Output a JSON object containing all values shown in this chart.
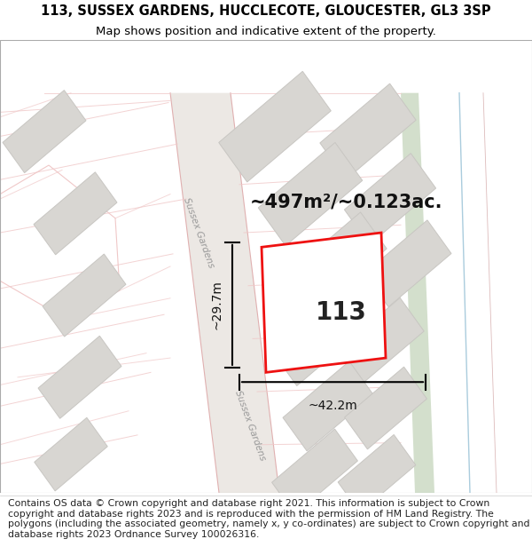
{
  "title_line1": "113, SUSSEX GARDENS, HUCCLECOTE, GLOUCESTER, GL3 3SP",
  "title_line2": "Map shows position and indicative extent of the property.",
  "footer_text": "Contains OS data © Crown copyright and database right 2021. This information is subject to Crown copyright and database rights 2023 and is reproduced with the permission of HM Land Registry. The polygons (including the associated geometry, namely x, y co-ordinates) are subject to Crown copyright and database rights 2023 Ordnance Survey 100026316.",
  "bg_color": "#ffffff",
  "map_bg": "#f8f7f5",
  "road_color": "#f0c8c8",
  "building_fill": "#d8d6d2",
  "building_edge": "#c8c6c2",
  "red_plot_color": "#ee1111",
  "green_strip_color": "#c8d8c0",
  "blue_line_color": "#88bbcc",
  "area_text": "~497m²/~0.123ac.",
  "width_text": "~42.2m",
  "height_text": "~29.7m",
  "plot_number": "113",
  "title_fontsize": 10.5,
  "subtitle_fontsize": 9.5,
  "footer_fontsize": 7.8,
  "area_fontsize": 15,
  "dim_fontsize": 10,
  "plot_num_fontsize": 20,
  "road_label_fontsize": 7.5
}
